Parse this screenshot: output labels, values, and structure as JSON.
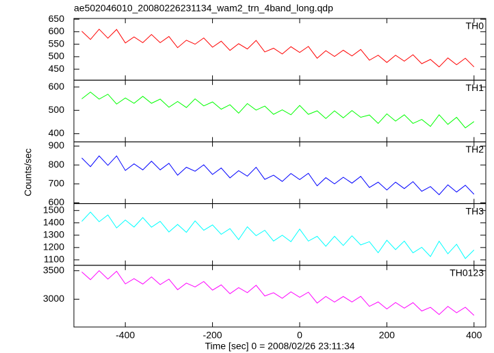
{
  "chart_data": {
    "type": "line",
    "title": "ae502046010_20080226231134_wam2_trn_4band_long.qdp",
    "xlabel": "Time [sec] 0 = 2008/02/26 23:11:34",
    "ylabel": "Counts/sec",
    "xlim": [
      -518,
      427
    ],
    "xticks": [
      -400,
      -200,
      0,
      200,
      400
    ],
    "x": [
      -500,
      -480,
      -460,
      -440,
      -420,
      -400,
      -380,
      -360,
      -340,
      -320,
      -300,
      -280,
      -260,
      -240,
      -220,
      -200,
      -180,
      -160,
      -140,
      -120,
      -100,
      -80,
      -60,
      -40,
      -20,
      0,
      20,
      40,
      60,
      80,
      100,
      120,
      140,
      160,
      180,
      200,
      220,
      240,
      260,
      280,
      300,
      320,
      340,
      360,
      380,
      400
    ],
    "series": [
      {
        "name": "TH0",
        "color": "#ff0000",
        "ylim": [
          406,
          653
        ],
        "yticks": [
          450,
          500,
          550,
          600,
          650
        ],
        "values": [
          602,
          569,
          610,
          574,
          609,
          555,
          579,
          556,
          589,
          556,
          581,
          536,
          566,
          550,
          575,
          538,
          562,
          525,
          552,
          531,
          565,
          519,
          534,
          511,
          540,
          517,
          541,
          494,
          524,
          501,
          526,
          503,
          529,
          486,
          506,
          477,
          506,
          482,
          508,
          472,
          489,
          459,
          495,
          468,
          494,
          459
        ]
      },
      {
        "name": "TH1",
        "color": "#00ff00",
        "ylim": [
          365,
          629
        ],
        "yticks": [
          400,
          500,
          600
        ],
        "values": [
          549,
          578,
          548,
          569,
          527,
          553,
          530,
          560,
          530,
          548,
          513,
          538,
          512,
          549,
          519,
          536,
          505,
          524,
          488,
          529,
          501,
          518,
          483,
          502,
          481,
          521,
          483,
          498,
          465,
          498,
          468,
          499,
          470,
          480,
          444,
          485,
          454,
          481,
          444,
          461,
          431,
          481,
          440,
          470,
          425,
          452
        ]
      },
      {
        "name": "TH2",
        "color": "#0000ff",
        "ylim": [
          596,
          922
        ],
        "yticks": [
          600,
          700,
          800,
          900
        ],
        "values": [
          837,
          791,
          848,
          798,
          848,
          771,
          806,
          774,
          820,
          774,
          809,
          746,
          788,
          767,
          801,
          750,
          784,
          732,
          770,
          741,
          788,
          724,
          746,
          713,
          755,
          723,
          756,
          690,
          733,
          700,
          735,
          704,
          740,
          681,
          709,
          668,
          709,
          675,
          712,
          661,
          686,
          643,
          695,
          657,
          693,
          645
        ]
      },
      {
        "name": "TH3",
        "color": "#00ffff",
        "ylim": [
          1056,
          1556
        ],
        "yticks": [
          1100,
          1200,
          1300,
          1400,
          1500
        ],
        "values": [
          1412,
          1487,
          1409,
          1464,
          1359,
          1423,
          1366,
          1443,
          1365,
          1412,
          1326,
          1387,
          1323,
          1416,
          1340,
          1383,
          1307,
          1353,
          1264,
          1368,
          1296,
          1340,
          1253,
          1300,
          1247,
          1349,
          1252,
          1291,
          1210,
          1291,
          1217,
          1295,
          1221,
          1247,
          1158,
          1259,
          1183,
          1252,
          1157,
          1202,
          1127,
          1251,
          1149,
          1226,
          1111,
          1180
        ]
      },
      {
        "name": "TH0123",
        "color": "#ff00ff",
        "ylim": [
          2512,
          3595
        ],
        "yticks": [
          3000,
          3500
        ],
        "values": [
          3478,
          3343,
          3500,
          3353,
          3490,
          3268,
          3361,
          3266,
          3391,
          3256,
          3353,
          3166,
          3283,
          3216,
          3310,
          3159,
          3252,
          3097,
          3202,
          3115,
          3244,
          3057,
          3114,
          3016,
          3129,
          3034,
          3123,
          2932,
          3049,
          2950,
          3047,
          2952,
          3050,
          2875,
          2952,
          2829,
          2942,
          2843,
          2940,
          2793,
          2858,
          2732,
          2873,
          2762,
          2859,
          2716
        ]
      }
    ]
  }
}
